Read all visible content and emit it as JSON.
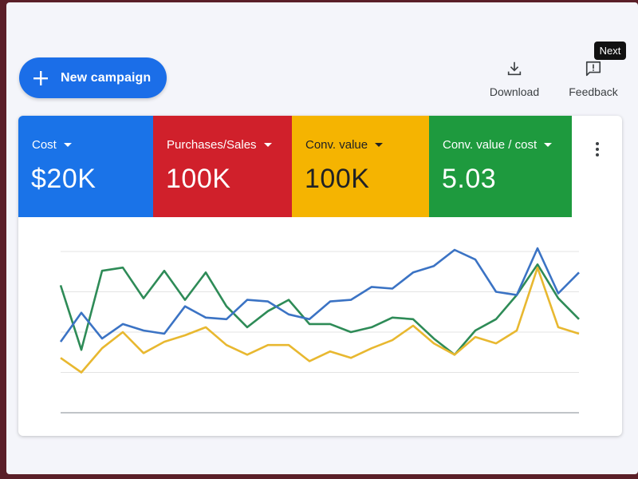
{
  "toolbar": {
    "new_campaign_label": "New campaign",
    "download_label": "Download",
    "feedback_label": "Feedback",
    "tooltip": "Next"
  },
  "metrics": [
    {
      "label": "Cost",
      "value": "$20K",
      "color": "#1a73e8"
    },
    {
      "label": "Purchases/Sales",
      "value": "100K",
      "color": "#d0202b"
    },
    {
      "label": "Conv. value",
      "value": "100K",
      "color": "#f5b401"
    },
    {
      "label": "Conv. value / cost",
      "value": "5.03",
      "color": "#1e9a3e"
    }
  ],
  "icons": [
    "plus-icon",
    "download-icon",
    "feedback-icon",
    "more-vert-icon",
    "caret-down-icon"
  ],
  "chart_data": {
    "type": "line",
    "grid": true,
    "legend": "none",
    "ylim": [
      0,
      100
    ],
    "x": [
      0,
      1,
      2,
      3,
      4,
      5,
      6,
      7,
      8,
      9,
      10,
      11,
      12,
      13,
      14,
      15,
      16,
      17,
      18,
      19,
      20,
      21,
      22,
      23,
      24,
      25
    ],
    "series": [
      {
        "color": "#3b73c4",
        "values": [
          44,
          62,
          46,
          55,
          51,
          49,
          66,
          59,
          58,
          70,
          69,
          61,
          58,
          69,
          70,
          78,
          77,
          87,
          91,
          101,
          95,
          75,
          73,
          102,
          74,
          87
        ]
      },
      {
        "color": "#2e8b57",
        "values": [
          79,
          39,
          88,
          90,
          71,
          88,
          70,
          87,
          66,
          53,
          63,
          70,
          55,
          55,
          50,
          53,
          59,
          58,
          46,
          36,
          51,
          58,
          73,
          92,
          71,
          58
        ]
      },
      {
        "color": "#e8b830",
        "values": [
          34,
          25,
          40,
          50,
          37,
          44,
          48,
          53,
          42,
          36,
          42,
          42,
          32,
          38,
          34,
          40,
          45,
          54,
          43,
          36,
          47,
          43,
          51,
          90,
          53,
          49
        ]
      }
    ]
  }
}
